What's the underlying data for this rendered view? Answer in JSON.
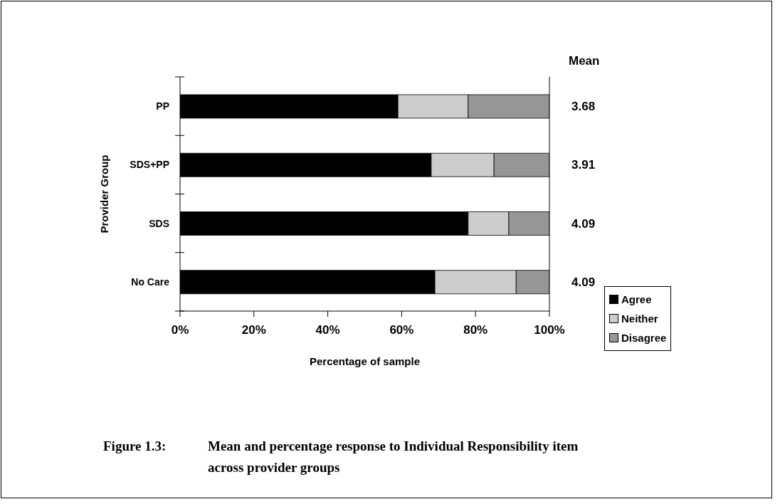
{
  "chart_data": {
    "type": "bar",
    "orientation": "horizontal",
    "stacked": true,
    "title": "Figure 1.3: Mean and percentage response to Individual Responsibility item across provider groups",
    "xlabel": "Percentage of sample",
    "ylabel": "Provider Group",
    "categories": [
      "PP",
      "SDS+PP",
      "SDS",
      "No Care"
    ],
    "series": [
      {
        "name": "Agree",
        "color": "#000000",
        "values": [
          59,
          68,
          78,
          69
        ]
      },
      {
        "name": "Neither",
        "color": "#cccccc",
        "values": [
          19,
          17,
          11,
          22
        ]
      },
      {
        "name": "Disagree",
        "color": "#969696",
        "values": [
          22,
          15,
          11,
          9
        ]
      }
    ],
    "xlim": [
      0,
      100
    ],
    "xticks": [
      {
        "value": 0,
        "label": "0%"
      },
      {
        "value": 20,
        "label": "20%"
      },
      {
        "value": 40,
        "label": "40%"
      },
      {
        "value": 60,
        "label": "60%"
      },
      {
        "value": 80,
        "label": "80%"
      },
      {
        "value": 100,
        "label": "100%"
      }
    ],
    "legend": "bottom right",
    "annotations": [
      "Mean",
      "3.68",
      "3.91",
      "4.09",
      "4.09"
    ]
  }
}
